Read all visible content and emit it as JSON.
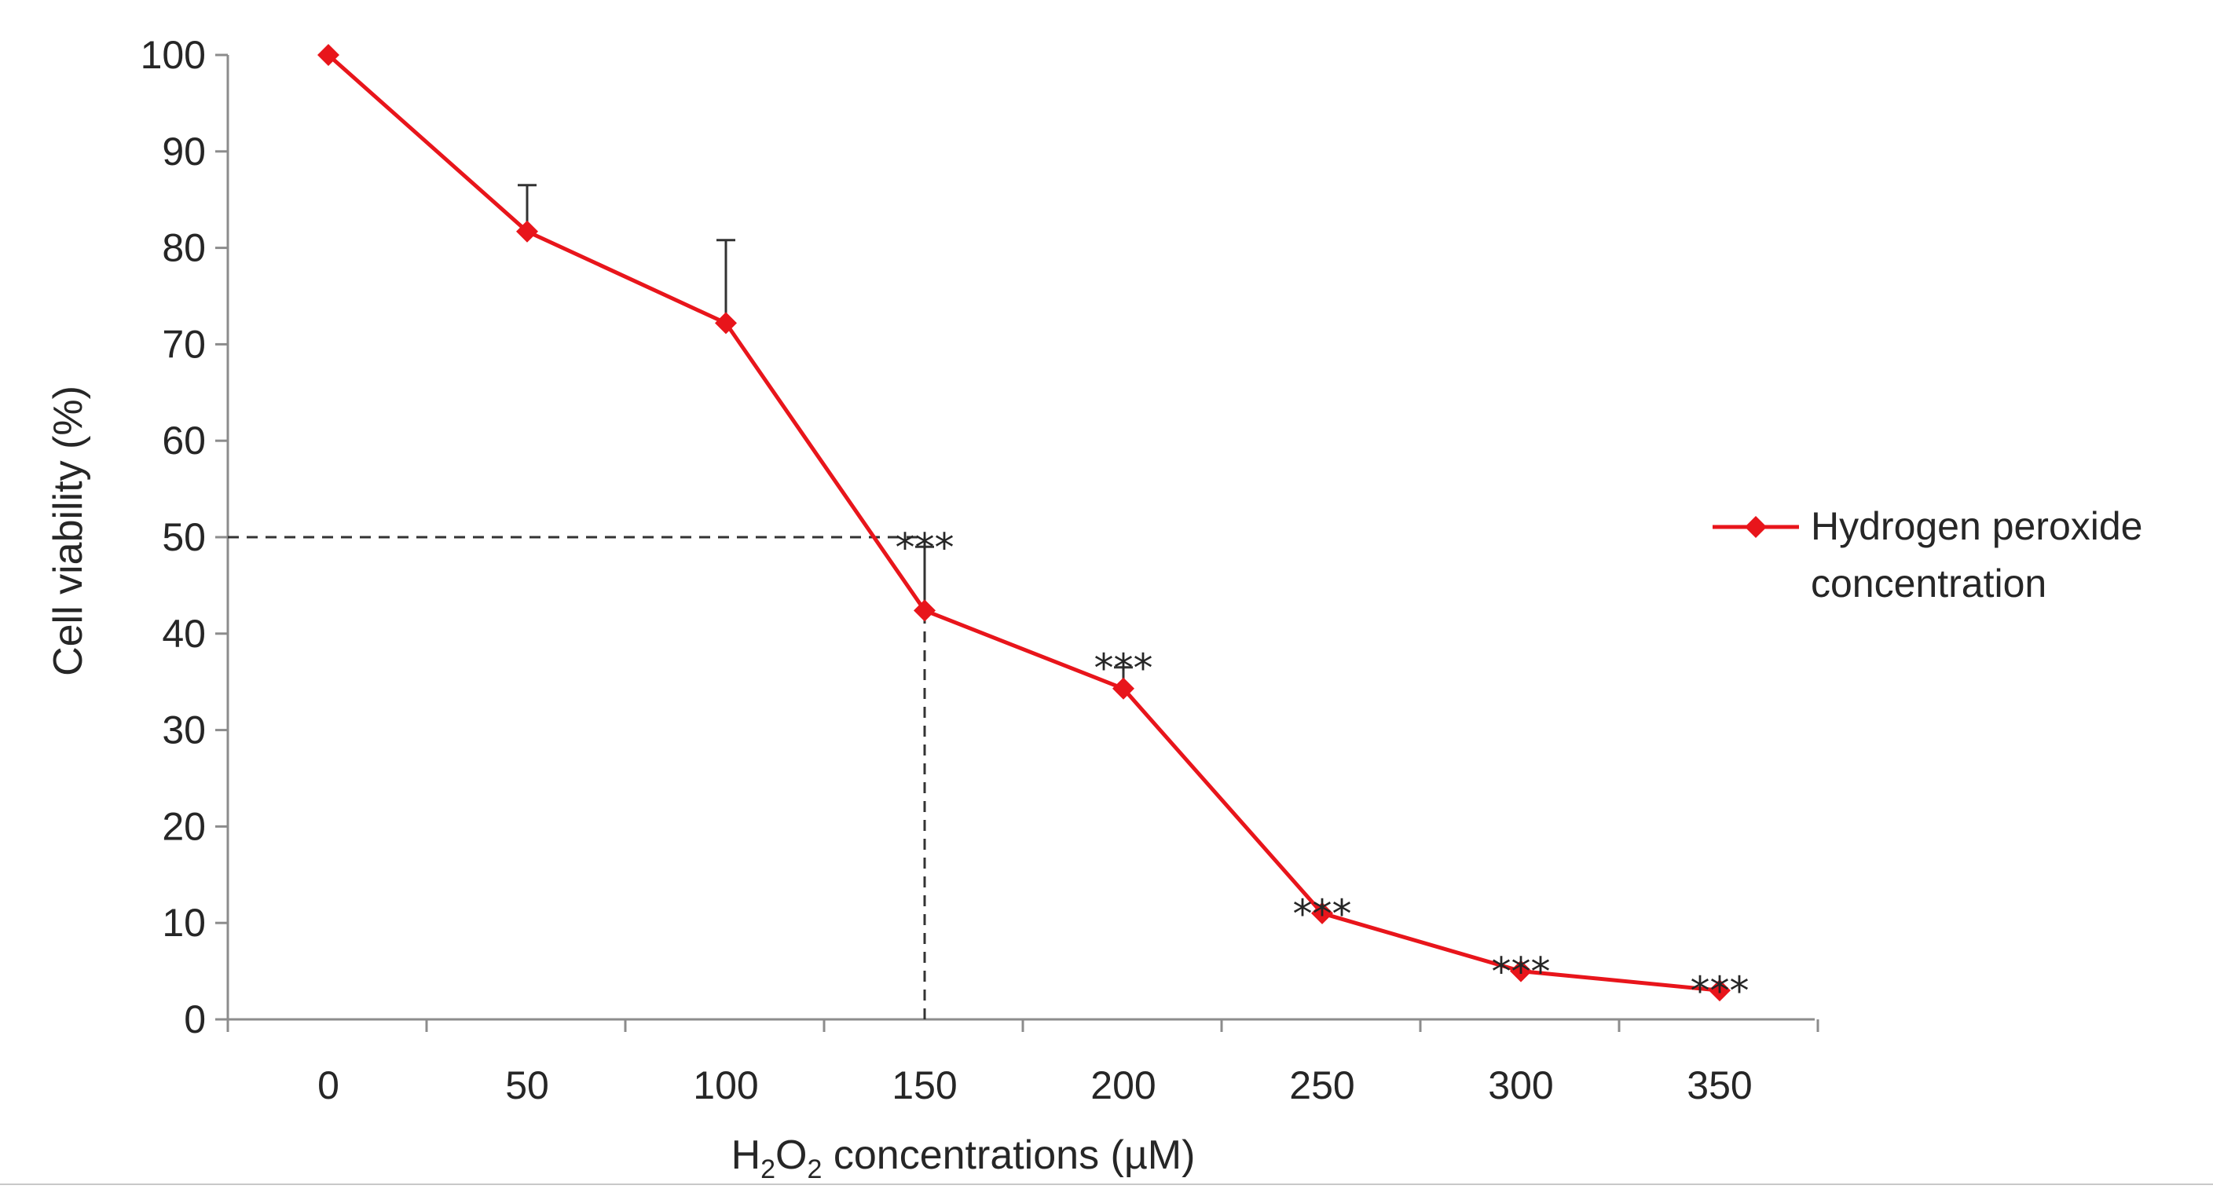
{
  "chart_data": {
    "type": "line",
    "title": "",
    "xlabel_prefix": "H",
    "xlabel_sub1": "2",
    "xlabel_mid": "O",
    "xlabel_sub2": "2",
    "xlabel_suffix": " concentrations (µM)",
    "ylabel": "Cell viability (%)",
    "x": [
      0,
      50,
      100,
      150,
      200,
      250,
      300,
      350
    ],
    "x_tick_labels": [
      "0",
      "50",
      "100",
      "150",
      "200",
      "250",
      "300",
      "350"
    ],
    "y_ticks": [
      0,
      10,
      20,
      30,
      40,
      50,
      60,
      70,
      80,
      90,
      100
    ],
    "y_tick_labels": [
      "0",
      "10",
      "20",
      "30",
      "40",
      "50",
      "60",
      "70",
      "80",
      "90",
      "100"
    ],
    "ylim": [
      0,
      100
    ],
    "series": [
      {
        "name": "Hydrogen peroxide concentration",
        "legend_line1": "Hydrogen peroxide",
        "legend_line2": "concentration",
        "color": "#e8151b",
        "values": [
          100,
          81.7,
          72.2,
          42.4,
          34.3,
          11.0,
          5.0,
          3.0
        ],
        "error_upper": [
          0,
          4.8,
          8.6,
          6.6,
          2.2,
          0,
          0,
          0
        ],
        "significance": [
          "",
          "",
          "",
          "***",
          "***",
          "***",
          "***",
          "***"
        ]
      }
    ],
    "reference_lines": {
      "y": 50,
      "x": 150
    },
    "legend_position": "right"
  }
}
